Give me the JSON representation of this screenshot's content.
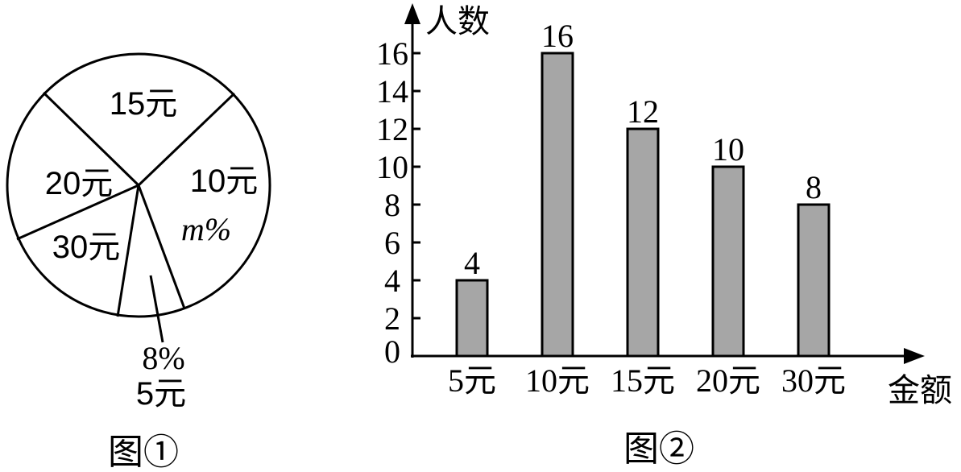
{
  "chart_data": [
    {
      "type": "pie",
      "caption": "图①",
      "slices": [
        {
          "label": "10元",
          "value_label": "m%"
        },
        {
          "label": "5元",
          "value_label": "8%",
          "value": 8
        },
        {
          "label": "30元"
        },
        {
          "label": "20元"
        },
        {
          "label": "15元"
        }
      ]
    },
    {
      "type": "bar",
      "caption": "图②",
      "categories": [
        "5元",
        "10元",
        "15元",
        "20元",
        "30元"
      ],
      "values": [
        4,
        16,
        12,
        10,
        8
      ],
      "xlabel": "金额",
      "ylabel": "人数",
      "yticks": [
        "0",
        "2",
        "4",
        "6",
        "8",
        "10",
        "12",
        "14",
        "16"
      ],
      "ylim": [
        0,
        16
      ],
      "bar_color": "#a6a6a6",
      "data_labels": true
    }
  ]
}
